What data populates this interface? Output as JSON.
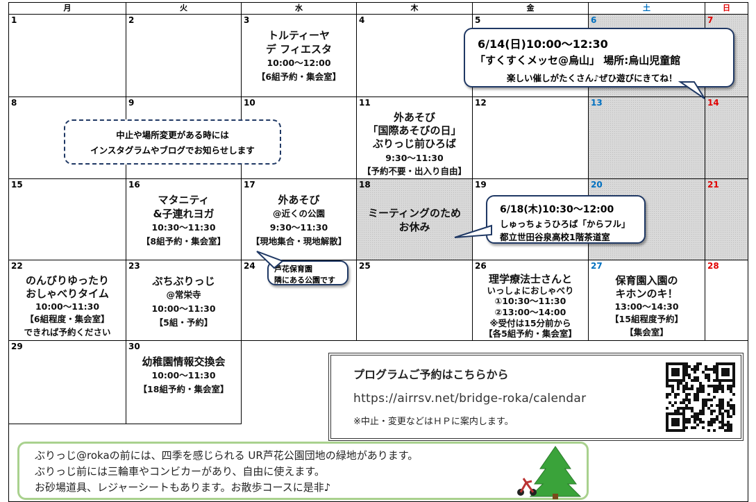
{
  "calendar": {
    "days": [
      "月",
      "火",
      "水",
      "木",
      "金",
      "土",
      "日"
    ],
    "weeks": [
      [
        {
          "date": 1
        },
        {
          "date": 2
        },
        {
          "date": 3,
          "lines": [
            "トルティーヤ",
            "デ フィエスタ",
            "10:00～12:00",
            "【6組予約・集会室】"
          ]
        },
        {
          "date": 4
        },
        {
          "date": 5
        },
        {
          "date": 6
        },
        {
          "date": 7
        }
      ],
      [
        {
          "date": 8
        },
        {
          "date": 9
        },
        {
          "date": 10
        },
        {
          "date": 11,
          "lines": [
            "外あそび",
            "「国際あそびの日」",
            "ぶりっじ前ひろば",
            "9:30～11:30",
            "【予約不要・出入り自由】"
          ]
        },
        {
          "date": 12
        },
        {
          "date": 13
        },
        {
          "date": 14
        }
      ],
      [
        {
          "date": 15
        },
        {
          "date": 16,
          "lines": [
            "マタニティ",
            "&子連れヨガ",
            "10:30～11:30",
            "【8組予約・集会室】"
          ]
        },
        {
          "date": 17,
          "lines": [
            "外あそび",
            "@近くの公園",
            "9:30～11:30",
            "【現地集合・現地解散】"
          ]
        },
        {
          "date": 18,
          "lines": [
            "ミーティングのため",
            "お休み"
          ]
        },
        {
          "date": 19
        },
        {
          "date": 20
        },
        {
          "date": 21
        }
      ],
      [
        {
          "date": 22,
          "lines": [
            "のんびりゆったり",
            "おしゃべりタイム",
            "10:00～11:30",
            "【6組程度・集会室】",
            "できれば予約ください"
          ]
        },
        {
          "date": 23,
          "lines": [
            "ぷちぶりっじ",
            "@常栄寺",
            "10:00～11:30",
            "【5組・予約】"
          ]
        },
        {
          "date": 24
        },
        {
          "date": 25
        },
        {
          "date": 26,
          "lines": [
            "理学療法士さんと",
            "いっしょにおしゃべり",
            "①10:30～11:30",
            "②13:00～14:00",
            "※受付は15分前から",
            "【各5組予約・集会室】"
          ]
        },
        {
          "date": 27,
          "lines": [
            "保育園入園の",
            "キホンのキ！",
            "13:00～14:30",
            "【15組程度予約】",
            "【集会室】"
          ]
        },
        {
          "date": 28
        }
      ],
      [
        {
          "date": 29
        },
        {
          "date": 30,
          "lines": [
            "幼稚園情報交換会",
            "10:00～11:30",
            "【18組予約・集会室】"
          ]
        }
      ]
    ]
  },
  "callouts": [
    {
      "lines": [
        "6/14(日)10:00～12:30",
        "「すくすくメッセ@烏山」 場所:烏山児童館",
        "楽しい催しがたくさん♪ぜひ遊びにきてね！"
      ]
    },
    {
      "lines": [
        "中止や場所変更がある時には",
        "インスタグラムやブログでお知らせします"
      ]
    },
    {
      "lines": [
        "6/18(木)10:30～12:00",
        "しゅっちょうひろば「からフル」",
        "都立世田谷泉高校1階茶道室"
      ]
    },
    {
      "lines": [
        "芦花保育園",
        "隣にある公園です"
      ]
    }
  ],
  "program": {
    "title": "プログラムご予約はこちらから",
    "url": "https://airrsv.net/bridge-roka/calendar",
    "note": "※中止・変更などはＨＰに案内します。"
  },
  "footer": {
    "lines": [
      "ぶりっじ@rokaの前には、四季を感じられる UR芦花公園団地の緑地があります。",
      "ぶりっじ前には三輪車やコンビカーがあり、自由に使えます。",
      "お砂場道具、レジャーシートもあります。お散歩コースに是非♪"
    ]
  }
}
